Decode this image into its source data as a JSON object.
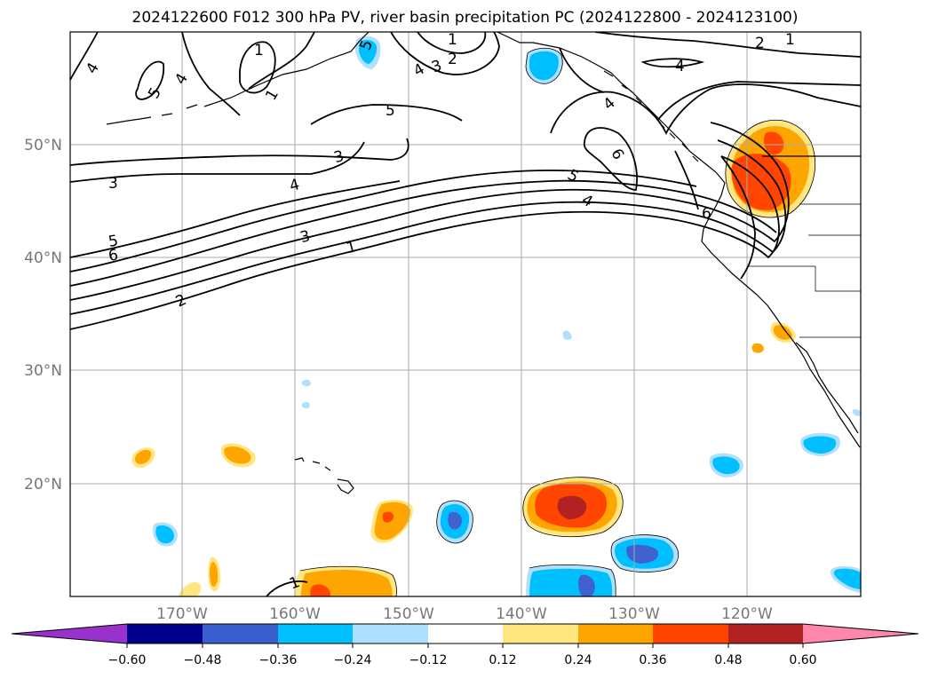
{
  "title": "2024122600 F012 300 hPa PV, river basin precipitation PC (2024122800 - 2024123100)",
  "map": {
    "lon_labels": [
      "170°W",
      "160°W",
      "150°W",
      "140°W",
      "130°W",
      "120°W"
    ],
    "lat_labels": [
      "50°N",
      "40°N",
      "30°N",
      "20°N"
    ],
    "contour_labels": [
      "4",
      "5",
      "4",
      "1",
      "1",
      "5",
      "4",
      "3",
      "2",
      "1",
      "5",
      "4",
      "4",
      "2",
      "1",
      "6",
      "5",
      "4",
      "6",
      "3",
      "4",
      "3",
      "5",
      "6",
      "3",
      "1",
      "2",
      "1"
    ],
    "shading_colors": {
      "strong_positive": "#ff4500",
      "very_strong_positive": "#b22222",
      "moderate_positive": "#ffa500",
      "weak_positive": "#ffe680",
      "weak_negative": "#b0e0ff",
      "moderate_negative": "#00bfff",
      "strong_negative": "#4062d0"
    }
  },
  "colorbar": {
    "ticks": [
      "−0.60",
      "−0.48",
      "−0.36",
      "−0.24",
      "−0.12",
      "0.12",
      "0.24",
      "0.36",
      "0.48",
      "0.60"
    ],
    "colors": [
      "#9932cc",
      "#00008b",
      "#3a5fcd",
      "#00bfff",
      "#b0e0ff",
      "#ffffff",
      "#ffe680",
      "#ffa500",
      "#ff4500",
      "#b22222",
      "#ff88aa"
    ]
  }
}
